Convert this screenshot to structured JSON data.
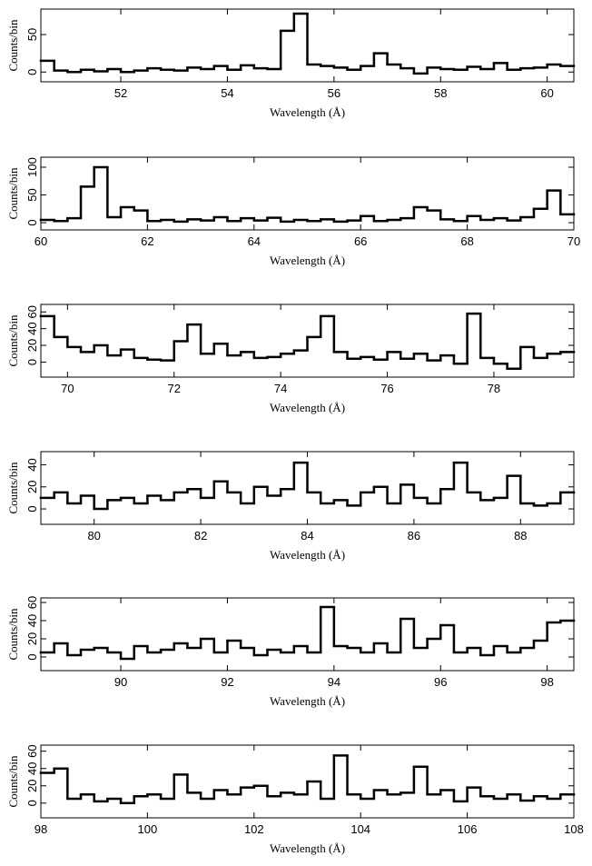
{
  "chart_data": [
    {
      "type": "histogram",
      "xlabel": "Wavelength (Å)",
      "ylabel": "Counts/bin",
      "color": "#000000",
      "bins": [
        50.5,
        50.75,
        51,
        51.25,
        51.5,
        51.75,
        52,
        52.25,
        52.5,
        52.75,
        53,
        53.25,
        53.5,
        53.75,
        54,
        54.25,
        54.5,
        54.75,
        55,
        55.25,
        55.5,
        55.75,
        56,
        56.25,
        56.5,
        56.75,
        57,
        57.25,
        57.5,
        57.75,
        58,
        58.25,
        58.5,
        58.75,
        59,
        59.25,
        59.5,
        59.75,
        60,
        60.25,
        60.5
      ],
      "values": [
        15,
        2,
        0,
        3,
        1,
        4,
        0,
        2,
        5,
        3,
        2,
        6,
        4,
        8,
        3,
        9,
        5,
        4,
        55,
        78,
        10,
        8,
        6,
        3,
        8,
        25,
        10,
        5,
        -2,
        6,
        4,
        3,
        7,
        4,
        12,
        3,
        5,
        6,
        10,
        8
      ],
      "xlim": [
        50.5,
        60.5
      ],
      "xticks": [
        52,
        54,
        56,
        58,
        60
      ],
      "ylim": [
        -13,
        84
      ],
      "yticks": [
        0,
        50
      ]
    },
    {
      "type": "histogram",
      "xlabel": "Wavelength (Å)",
      "ylabel": "Counts/bin",
      "color": "#000000",
      "bins": [
        60,
        60.25,
        60.5,
        60.75,
        61,
        61.25,
        61.5,
        61.75,
        62,
        62.25,
        62.5,
        62.75,
        63,
        63.25,
        63.5,
        63.75,
        64,
        64.25,
        64.5,
        64.75,
        65,
        65.25,
        65.5,
        65.75,
        66,
        66.25,
        66.5,
        66.75,
        67,
        67.25,
        67.5,
        67.75,
        68,
        68.25,
        68.5,
        68.75,
        69,
        69.25,
        69.5,
        69.75,
        70
      ],
      "values": [
        5,
        3,
        8,
        65,
        100,
        10,
        28,
        22,
        3,
        5,
        2,
        6,
        4,
        10,
        3,
        8,
        4,
        9,
        2,
        5,
        3,
        6,
        2,
        4,
        12,
        3,
        5,
        8,
        28,
        22,
        6,
        3,
        12,
        5,
        8,
        4,
        10,
        25,
        58,
        15
      ],
      "xlim": [
        60,
        70
      ],
      "xticks": [
        60,
        62,
        64,
        66,
        68,
        70
      ],
      "ylim": [
        -13,
        118
      ],
      "yticks": [
        0,
        50,
        100
      ]
    },
    {
      "type": "histogram",
      "xlabel": "Wavelength (Å)",
      "ylabel": "Counts/bin",
      "color": "#000000",
      "bins": [
        69.5,
        69.75,
        70,
        70.25,
        70.5,
        70.75,
        71,
        71.25,
        71.5,
        71.75,
        72,
        72.25,
        72.5,
        72.75,
        73,
        73.25,
        73.5,
        73.75,
        74,
        74.25,
        74.5,
        74.75,
        75,
        75.25,
        75.5,
        75.75,
        76,
        76.25,
        76.5,
        76.75,
        77,
        77.25,
        77.5,
        77.75,
        78,
        78.25,
        78.5,
        78.75,
        79,
        79.25,
        79.5
      ],
      "values": [
        55,
        30,
        18,
        12,
        20,
        8,
        15,
        5,
        3,
        2,
        25,
        45,
        10,
        22,
        8,
        12,
        5,
        6,
        10,
        14,
        30,
        55,
        12,
        4,
        6,
        3,
        12,
        4,
        10,
        2,
        8,
        -2,
        58,
        5,
        -2,
        -8,
        18,
        5,
        10,
        12
      ],
      "xlim": [
        69.5,
        79.5
      ],
      "xticks": [
        70,
        72,
        74,
        76,
        78
      ],
      "ylim": [
        -18,
        69
      ],
      "yticks": [
        0,
        20,
        40,
        60
      ]
    },
    {
      "type": "histogram",
      "xlabel": "Wavelength (Å)",
      "ylabel": "Counts/bin",
      "color": "#000000",
      "bins": [
        79,
        79.25,
        79.5,
        79.75,
        80,
        80.25,
        80.5,
        80.75,
        81,
        81.25,
        81.5,
        81.75,
        82,
        82.25,
        82.5,
        82.75,
        83,
        83.25,
        83.5,
        83.75,
        84,
        84.25,
        84.5,
        84.75,
        85,
        85.25,
        85.5,
        85.75,
        86,
        86.25,
        86.5,
        86.75,
        87,
        87.25,
        87.5,
        87.75,
        88,
        88.25,
        88.5,
        88.75,
        89
      ],
      "values": [
        10,
        15,
        5,
        12,
        0,
        8,
        10,
        5,
        12,
        8,
        15,
        18,
        10,
        25,
        15,
        5,
        20,
        12,
        18,
        42,
        15,
        5,
        8,
        3,
        15,
        20,
        5,
        22,
        10,
        5,
        18,
        42,
        15,
        8,
        10,
        30,
        5,
        3,
        5,
        15
      ],
      "xlim": [
        79,
        89
      ],
      "xticks": [
        80,
        82,
        84,
        86,
        88
      ],
      "ylim": [
        -14,
        52
      ],
      "yticks": [
        0,
        20,
        40
      ]
    },
    {
      "type": "histogram",
      "xlabel": "Wavelength (Å)",
      "ylabel": "Counts/bin",
      "color": "#000000",
      "bins": [
        88.5,
        88.75,
        89,
        89.25,
        89.5,
        89.75,
        90,
        90.25,
        90.5,
        90.75,
        91,
        91.25,
        91.5,
        91.75,
        92,
        92.25,
        92.5,
        92.75,
        93,
        93.25,
        93.5,
        93.75,
        94,
        94.25,
        94.5,
        94.75,
        95,
        95.25,
        95.5,
        95.75,
        96,
        96.25,
        96.5,
        96.75,
        97,
        97.25,
        97.5,
        97.75,
        98,
        98.25,
        98.5
      ],
      "values": [
        5,
        15,
        2,
        8,
        10,
        5,
        -2,
        12,
        5,
        8,
        15,
        10,
        20,
        5,
        18,
        10,
        2,
        8,
        5,
        12,
        5,
        55,
        12,
        10,
        5,
        15,
        5,
        42,
        10,
        20,
        35,
        5,
        10,
        2,
        12,
        5,
        10,
        18,
        38,
        40
      ],
      "xlim": [
        88.5,
        98.5
      ],
      "xticks": [
        90,
        92,
        94,
        96,
        98
      ],
      "ylim": [
        -15,
        65
      ],
      "yticks": [
        0,
        20,
        40,
        60
      ]
    },
    {
      "type": "histogram",
      "xlabel": "Wavelength (Å)",
      "ylabel": "Counts/bin",
      "color": "#000000",
      "bins": [
        98,
        98.25,
        98.5,
        98.75,
        99,
        99.25,
        99.5,
        99.75,
        100,
        100.25,
        100.5,
        100.75,
        101,
        101.25,
        101.5,
        101.75,
        102,
        102.25,
        102.5,
        102.75,
        103,
        103.25,
        103.5,
        103.75,
        104,
        104.25,
        104.5,
        104.75,
        105,
        105.25,
        105.5,
        105.75,
        106,
        106.25,
        106.5,
        106.75,
        107,
        107.25,
        107.5,
        107.75,
        108
      ],
      "values": [
        35,
        40,
        5,
        10,
        2,
        5,
        0,
        8,
        10,
        5,
        33,
        12,
        5,
        15,
        10,
        18,
        20,
        8,
        12,
        10,
        25,
        5,
        55,
        10,
        5,
        15,
        10,
        12,
        42,
        10,
        15,
        2,
        18,
        8,
        5,
        10,
        3,
        8,
        5,
        10
      ],
      "xlim": [
        98,
        108
      ],
      "xticks": [
        98,
        100,
        102,
        104,
        106,
        108
      ],
      "ylim": [
        -17,
        67
      ],
      "yticks": [
        0,
        20,
        40,
        60
      ]
    }
  ]
}
